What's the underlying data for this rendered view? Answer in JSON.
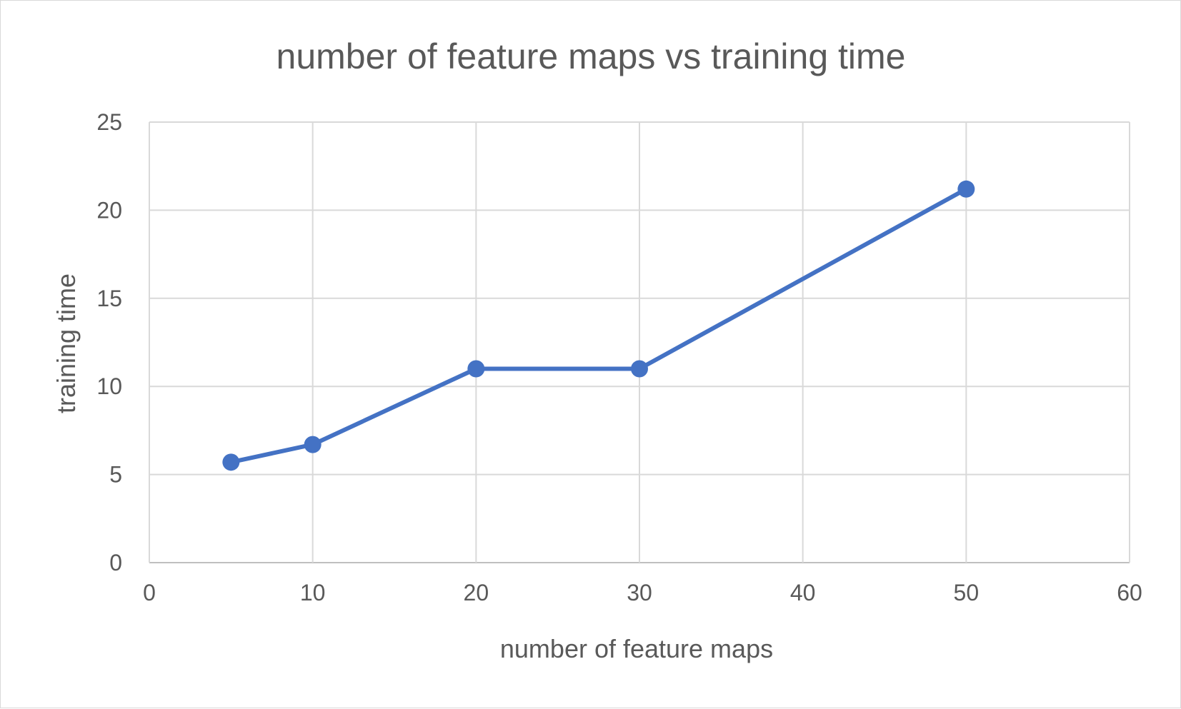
{
  "chart_data": {
    "type": "line",
    "title": "number of feature maps vs training time",
    "xlabel": "number of feature maps",
    "ylabel": "training time",
    "xlim": [
      0,
      60
    ],
    "ylim": [
      0,
      25
    ],
    "xticks": [
      0,
      10,
      20,
      30,
      40,
      50,
      60
    ],
    "yticks": [
      0,
      5,
      10,
      15,
      20,
      25
    ],
    "grid": true,
    "series": [
      {
        "x": [
          5,
          10,
          20,
          30,
          50
        ],
        "y": [
          5.7,
          6.7,
          11.0,
          11.0,
          21.2
        ],
        "color": "#4472c4",
        "marker": "circle"
      }
    ]
  }
}
